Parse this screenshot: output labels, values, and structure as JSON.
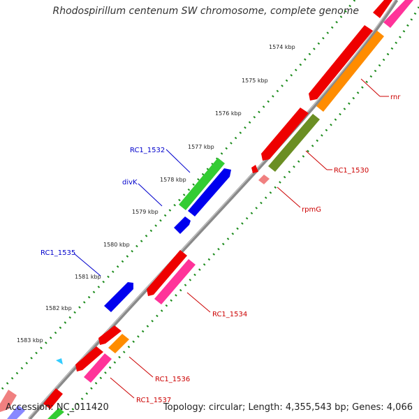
{
  "title": "Rhodospirillum centenum SW chromosome, complete genome",
  "footer": {
    "accession": "Accession: NC_011420",
    "topology": "Topology: circular; Length: 4,355,543 bp; Genes: 4,066"
  },
  "colors": {
    "backbone": "#8a8a8a",
    "tick_dots": "#1a8a1a",
    "label_forward": "#0000cc",
    "label_reverse": "#cc0000",
    "red": "#ee0000",
    "orange": "#ff8c00",
    "olive": "#6b8e23",
    "pink": "#ff3399",
    "salmon": "#f08080",
    "green": "#33cc33",
    "blue": "#0000ee",
    "light_blue": "#33ccff"
  },
  "ticks": [
    "1574 kbp",
    "1575 kbp",
    "1576 kbp",
    "1577 kbp",
    "1578 kbp",
    "1579 kbp",
    "1580 kbp",
    "1581 kbp",
    "1582 kbp",
    "1583 kbp"
  ],
  "labels": {
    "rnr": "rnr",
    "rc1_1530": "RC1_1530",
    "rpmg": "rpmG",
    "rc1_1532": "RC1_1532",
    "divk": "divK",
    "rc1_1535": "RC1_1535",
    "rc1_1534": "RC1_1534",
    "rc1_1536": "RC1_1536",
    "rc1_1537": "RC1_1537"
  }
}
